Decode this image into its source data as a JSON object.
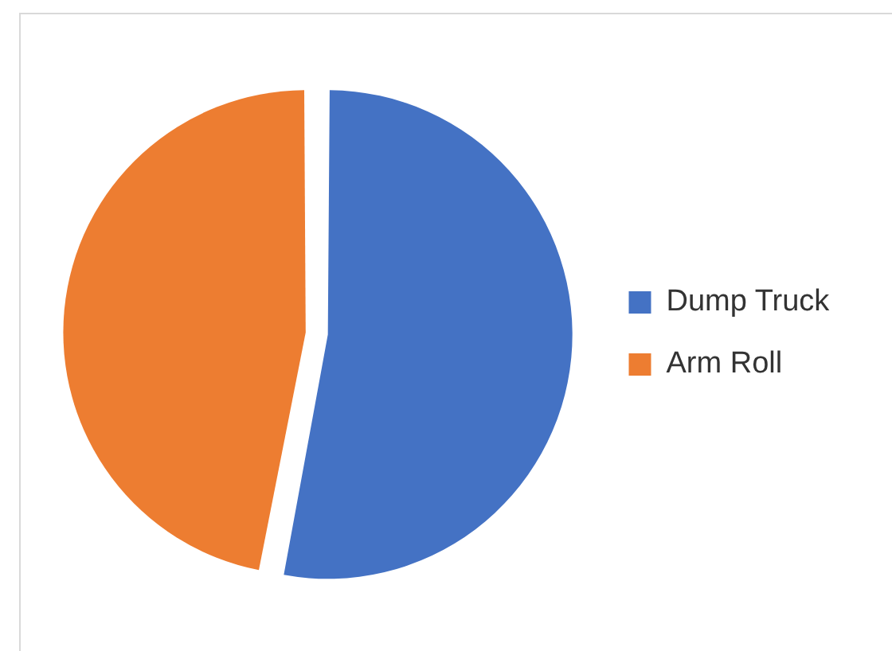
{
  "chart_data": {
    "type": "pie",
    "categories": [
      "Dump Truck",
      "Arm Roll"
    ],
    "values": [
      53,
      47
    ],
    "colors": [
      "#4472c4",
      "#ed7d31"
    ],
    "legend": "right"
  }
}
